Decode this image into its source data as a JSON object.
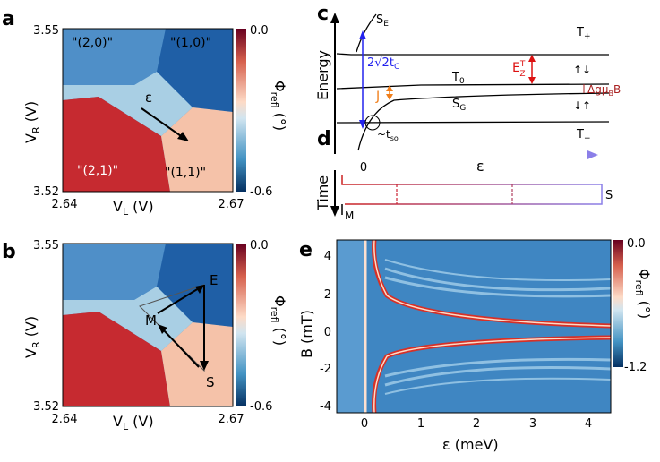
{
  "panels": {
    "a": {
      "letter": "a",
      "y_top": "3.55",
      "y_bottom": "3.52",
      "x_left": "2.64",
      "x_right": "2.67",
      "ylabel_main": "V",
      "ylabel_sub": "R",
      "ylabel_unit": " (V)",
      "xlabel_main": "V",
      "xlabel_sub": "L",
      "xlabel_unit": " (V)",
      "regions": [
        "\"(2,0)\"",
        "\"(1,0)\"",
        "\"(2,1)\"",
        "\"(1,1)\""
      ],
      "epsilon": "ε",
      "colorbar_top": "0.0",
      "colorbar_bottom": "-0.6",
      "colorbar_label_main": "Φ",
      "colorbar_label_sub": "refl",
      "colorbar_label_unit": " (°)"
    },
    "b": {
      "letter": "b",
      "y_top": "3.55",
      "y_bottom": "3.52",
      "x_left": "2.64",
      "x_right": "2.67",
      "ylabel_main": "V",
      "ylabel_sub": "R",
      "ylabel_unit": " (V)",
      "xlabel_main": "V",
      "xlabel_sub": "L",
      "xlabel_unit": " (V)",
      "point_m": "M",
      "point_e": "E",
      "point_s": "S",
      "colorbar_top": "0.0",
      "colorbar_bottom": "-0.6",
      "colorbar_label_main": "Φ",
      "colorbar_label_sub": "refl",
      "colorbar_label_unit": " (°)"
    },
    "c": {
      "letter": "c",
      "ylabel": "Energy",
      "se_main": "S",
      "se_sub": "E",
      "tplus_main": "T",
      "tplus_sub": "+",
      "tzero_main": "T",
      "tzero_sub": "0",
      "tminus_main": "T",
      "tminus_sub": "−",
      "sg_main": "S",
      "sg_sub": "G",
      "tc_label_pre": "2√2t",
      "tc_label_sub": "C",
      "ez_main": "E",
      "ez_sup": "T",
      "ez_sub": "Z",
      "j_label": "J",
      "dg_label_pre": "Δgμ",
      "dg_label_sub": "B",
      "dg_label_post": "B",
      "tso_pre": "~t",
      "tso_sub": "so",
      "spin_up_down": "↑↓",
      "spin_down_up": "↓↑",
      "x_zero": "0",
      "epsilon": "ε"
    },
    "d": {
      "letter": "d",
      "ylabel": "Time",
      "m_label": "M",
      "s_label": "S"
    },
    "e": {
      "letter": "e",
      "ylabel": "B (mT)",
      "xlabel": "ε (meV)",
      "y_ticks": [
        "4",
        "2",
        "0",
        "-2",
        "-4"
      ],
      "x_ticks": [
        "0",
        "1",
        "2",
        "3",
        "4"
      ],
      "colorbar_top": "0.0",
      "colorbar_bottom": "-1.2",
      "colorbar_label_main": "Φ",
      "colorbar_label_sub": "refl",
      "colorbar_label_unit": " (°)"
    }
  },
  "colors": {
    "red": "#b2182b",
    "salmon": "#f4a582",
    "lightblue": "#92c5de",
    "blue": "#2166ac",
    "darkblue": "#053061",
    "arrow_blue": "#2222ee",
    "orange": "#f07e1a",
    "ez_red": "#dd1111",
    "violet": "#8b7fe8"
  }
}
